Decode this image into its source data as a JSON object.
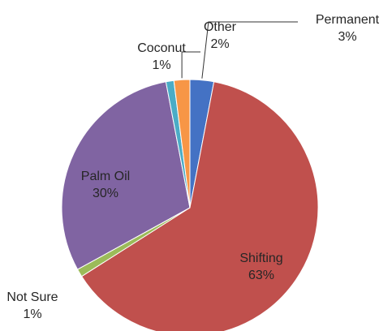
{
  "chart_data": {
    "type": "pie",
    "title": "",
    "start_angle_deg": 0,
    "slices": [
      {
        "label": "Permanent",
        "value": 3,
        "value_label": "3%",
        "color": "#4472C4"
      },
      {
        "label": "Shifting",
        "value": 63,
        "value_label": "63%",
        "color": "#C0504D"
      },
      {
        "label": "Not Sure",
        "value": 1,
        "value_label": "1%",
        "color": "#9BBB59"
      },
      {
        "label": "Palm Oil",
        "value": 30,
        "value_label": "30%",
        "color": "#8064A2"
      },
      {
        "label": "Coconut",
        "value": 1,
        "value_label": "1%",
        "color": "#4BACC6"
      },
      {
        "label": "Other",
        "value": 2,
        "value_label": "2%",
        "color": "#F79646"
      }
    ]
  }
}
